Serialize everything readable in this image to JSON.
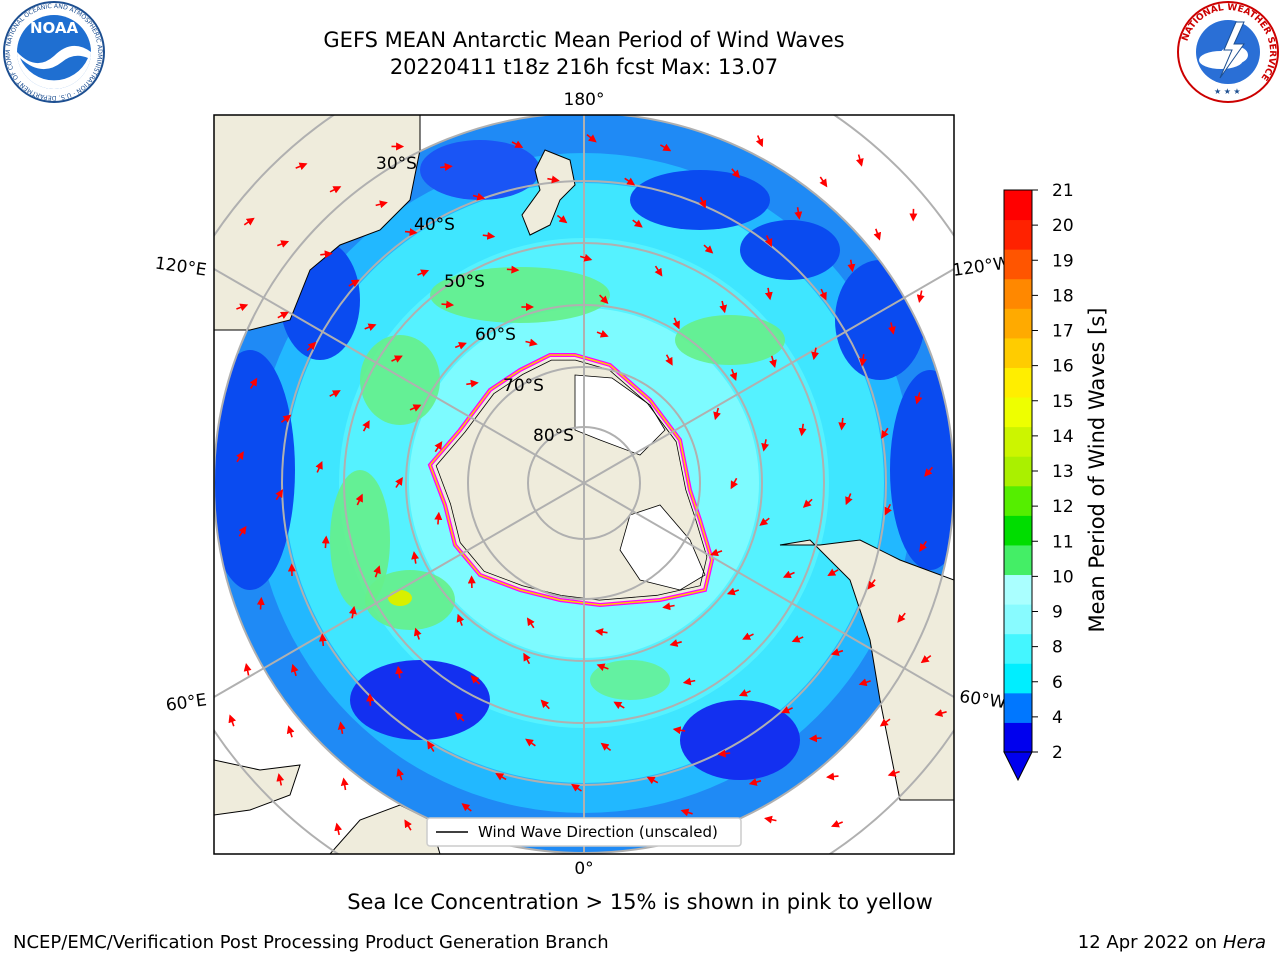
{
  "header": {
    "title_line1": "GEFS MEAN Antarctic Mean Period of Wind Waves",
    "title_line2": "20220411 t18z 216h fcst   Max: 13.07"
  },
  "logos": {
    "noaa_text": "NOAA",
    "noaa_ring_text": "NATIONAL OCEANIC AND ATMOSPHERIC ADMINISTRATION · U.S. DEPARTMENT OF COMMERCE",
    "nws_ring_text": "NATIONAL WEATHER SERVICE"
  },
  "map": {
    "projection": "south-polar-stereographic",
    "longitude_labels": {
      "top": "180°",
      "bottom": "0°",
      "upper_left": "120°E",
      "lower_left": "60°E",
      "upper_right": "120°W",
      "lower_right": "60°W"
    },
    "latitude_labels": [
      "30°S",
      "40°S",
      "50°S",
      "60°S",
      "70°S",
      "80°S"
    ],
    "legend_label": "Wind Wave Direction (unscaled)",
    "arrow_color": "#ff0000",
    "land_color": "#efecdc",
    "ice_outline_colors": [
      "#ff00ff",
      "#ffcc00"
    ]
  },
  "colorbar": {
    "label": "Mean Period of Wind Waves [s]",
    "ticks": [
      "2",
      "4",
      "6",
      "8",
      "9",
      "10",
      "11",
      "12",
      "13",
      "14",
      "15",
      "16",
      "17",
      "18",
      "19",
      "20",
      "21"
    ],
    "colors": [
      "#0000ee",
      "#0077ff",
      "#00eeff",
      "#44f6ff",
      "#88fbff",
      "#aaffff",
      "#44ee66",
      "#00dd00",
      "#55ee00",
      "#aaf000",
      "#ccf500",
      "#eeff00",
      "#ffee00",
      "#ffcc00",
      "#ffaa00",
      "#ff8800",
      "#ff5500",
      "#ff2200",
      "#ff0000"
    ]
  },
  "caption": "Sea Ice Concentration > 15% is shown in pink to yellow",
  "footer": {
    "left": "NCEP/EMC/Verification Post Processing Product Generation Branch",
    "right_prefix": "12 Apr 2022 on ",
    "right_host": "Hera"
  }
}
